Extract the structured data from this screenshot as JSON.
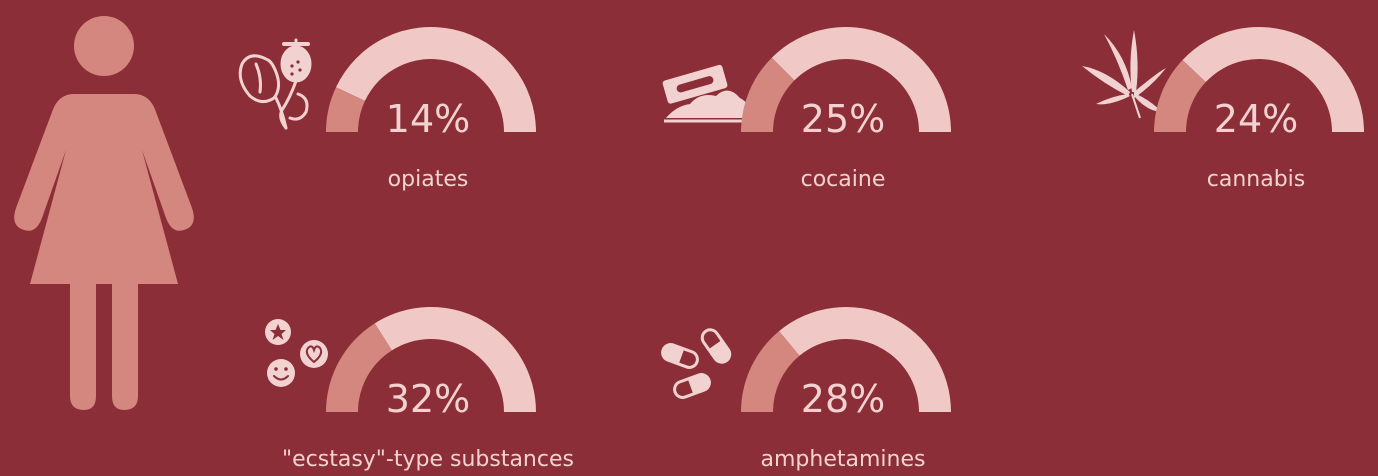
{
  "colors": {
    "background": "#8c2e37",
    "gauge_track": "#f0c9c6",
    "gauge_fill": "#d4877e",
    "figure": "#d4877e",
    "icon": "#f2d2d0",
    "text": "#f2d2d0"
  },
  "icons": {
    "figure": "woman-figure-icon",
    "opiates": "poppy-icon",
    "cocaine": "razor-blade-powder-icon",
    "cannabis": "cannabis-leaf-icon",
    "ecstasy": "ecstasy-pills-icon",
    "amphetamines": "capsules-icon"
  },
  "chart_data": {
    "type": "gauge",
    "unit": "%",
    "max": 100,
    "items": [
      {
        "label": "opiates",
        "value": 14,
        "display": "14%",
        "icon": "poppy-icon"
      },
      {
        "label": "cocaine",
        "value": 25,
        "display": "25%",
        "icon": "razor-blade-powder-icon"
      },
      {
        "label": "cannabis",
        "value": 24,
        "display": "24%",
        "icon": "cannabis-leaf-icon"
      },
      {
        "label": "\"ecstasy\"-type substances",
        "value": 32,
        "display": "32%",
        "icon": "ecstasy-pills-icon"
      },
      {
        "label": "amphetamines",
        "value": 28,
        "display": "28%",
        "icon": "capsules-icon"
      }
    ]
  }
}
